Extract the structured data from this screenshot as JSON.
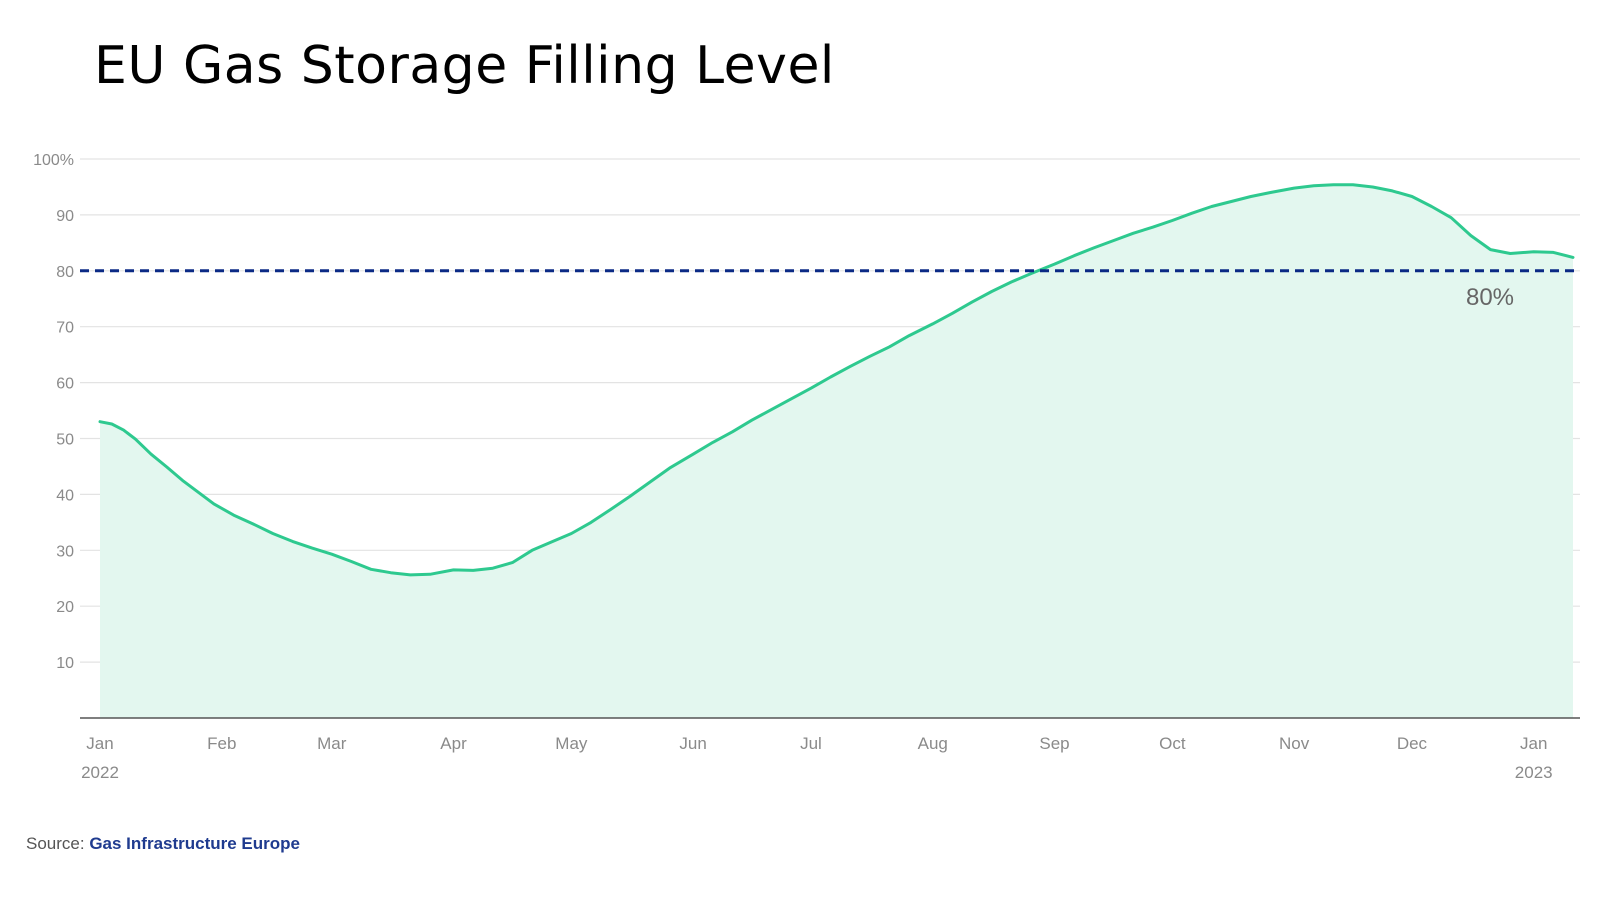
{
  "title": "EU Gas Storage Filling Level",
  "source": {
    "label": "Source:",
    "name": "Gas Infrastructure Europe"
  },
  "colors": {
    "line": "#2ec98f",
    "area": "#e3f7ef",
    "threshold": "#0b2a85",
    "grid": "#e3e3e3",
    "axis": "#555555",
    "tick_text": "#8a8a8a"
  },
  "chart_data": {
    "type": "area",
    "title": "EU Gas Storage Filling Level",
    "xlabel": "",
    "ylabel": "",
    "ylim": [
      0,
      100
    ],
    "xlim": [
      "2022-01-01",
      "2023-01-11"
    ],
    "y_ticks": [
      10,
      20,
      30,
      40,
      50,
      60,
      70,
      80,
      90,
      100
    ],
    "y_tick_labels": [
      "10",
      "20",
      "30",
      "40",
      "50",
      "60",
      "70",
      "80",
      "90",
      "100%"
    ],
    "x_ticks": [
      {
        "date": "2022-01-01",
        "label": "Jan",
        "sublabel": "2022"
      },
      {
        "date": "2022-02-01",
        "label": "Feb"
      },
      {
        "date": "2022-03-01",
        "label": "Mar"
      },
      {
        "date": "2022-04-01",
        "label": "Apr"
      },
      {
        "date": "2022-05-01",
        "label": "May"
      },
      {
        "date": "2022-06-01",
        "label": "Jun"
      },
      {
        "date": "2022-07-01",
        "label": "Jul"
      },
      {
        "date": "2022-08-01",
        "label": "Aug"
      },
      {
        "date": "2022-09-01",
        "label": "Sep"
      },
      {
        "date": "2022-10-01",
        "label": "Oct"
      },
      {
        "date": "2022-11-01",
        "label": "Nov"
      },
      {
        "date": "2022-12-01",
        "label": "Dec"
      },
      {
        "date": "2023-01-01",
        "label": "Jan",
        "sublabel": "2023"
      }
    ],
    "grid": true,
    "threshold": {
      "value": 80,
      "label": "80%",
      "style": "dashed"
    },
    "series": [
      {
        "x": [
          "2022-01-01",
          "2022-01-04",
          "2022-01-07",
          "2022-01-10",
          "2022-01-14",
          "2022-01-18",
          "2022-01-22",
          "2022-01-26",
          "2022-01-30",
          "2022-02-04",
          "2022-02-09",
          "2022-02-14",
          "2022-02-19",
          "2022-02-24",
          "2022-03-01",
          "2022-03-06",
          "2022-03-11",
          "2022-03-16",
          "2022-03-21",
          "2022-03-26",
          "2022-04-01",
          "2022-04-06",
          "2022-04-11",
          "2022-04-16",
          "2022-04-21",
          "2022-04-26",
          "2022-05-01",
          "2022-05-06",
          "2022-05-11",
          "2022-05-16",
          "2022-05-21",
          "2022-05-26",
          "2022-06-01",
          "2022-06-06",
          "2022-06-11",
          "2022-06-16",
          "2022-06-21",
          "2022-06-26",
          "2022-07-01",
          "2022-07-06",
          "2022-07-11",
          "2022-07-16",
          "2022-07-21",
          "2022-07-26",
          "2022-08-01",
          "2022-08-06",
          "2022-08-11",
          "2022-08-16",
          "2022-08-21",
          "2022-08-26",
          "2022-09-01",
          "2022-09-06",
          "2022-09-11",
          "2022-09-16",
          "2022-09-21",
          "2022-09-26",
          "2022-10-01",
          "2022-10-06",
          "2022-10-11",
          "2022-10-16",
          "2022-10-21",
          "2022-10-26",
          "2022-11-01",
          "2022-11-06",
          "2022-11-11",
          "2022-11-16",
          "2022-11-21",
          "2022-11-26",
          "2022-12-01",
          "2022-12-06",
          "2022-12-11",
          "2022-12-16",
          "2022-12-21",
          "2022-12-26",
          "2023-01-01",
          "2023-01-06",
          "2023-01-11"
        ],
        "values": [
          53.0,
          52.6,
          51.5,
          49.9,
          47.2,
          44.9,
          42.5,
          40.4,
          38.3,
          36.3,
          34.7,
          33.0,
          31.6,
          30.4,
          29.3,
          28.0,
          26.6,
          26.0,
          25.6,
          25.7,
          26.5,
          26.4,
          26.8,
          27.8,
          30.0,
          31.5,
          33.0,
          35.0,
          37.3,
          39.7,
          42.2,
          44.7,
          47.2,
          49.3,
          51.2,
          53.3,
          55.2,
          57.1,
          59.0,
          61.0,
          62.9,
          64.7,
          66.4,
          68.4,
          70.5,
          72.4,
          74.4,
          76.3,
          78.0,
          79.5,
          81.2,
          82.7,
          84.1,
          85.4,
          86.7,
          87.8,
          89.0,
          90.3,
          91.5,
          92.4,
          93.3,
          94.0,
          94.8,
          95.2,
          95.4,
          95.4,
          95.0,
          94.3,
          93.3,
          91.5,
          89.5,
          86.3,
          83.8,
          83.1,
          83.4,
          83.3,
          82.4
        ]
      }
    ]
  }
}
